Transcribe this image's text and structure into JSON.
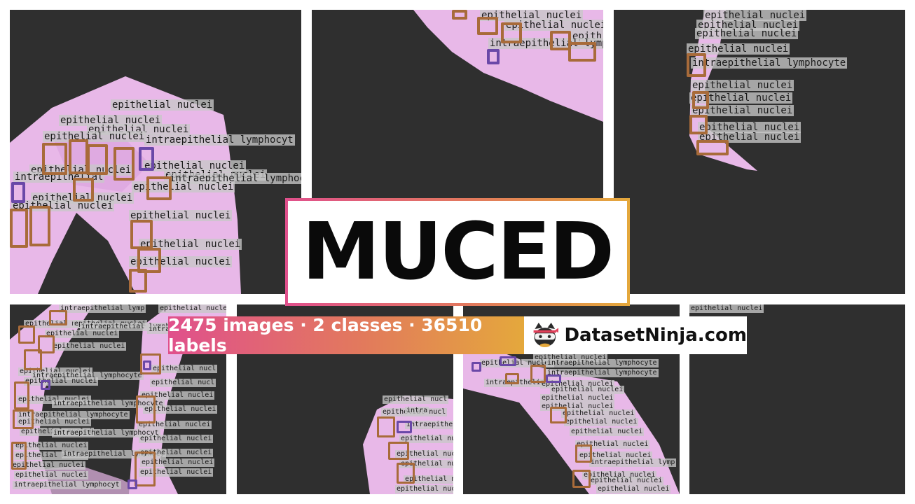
{
  "title": "MUCED",
  "stats": "2475 images · 2 classes · 36510 labels",
  "brand": "DatasetNinja.com",
  "brand_icon": "ninja-cat-icon",
  "colors": {
    "gradient_start": "#e0508c",
    "gradient_end": "#e4a83c",
    "tile_background": "#2f2f2f",
    "tissue": "#e8b8e8",
    "epithelial_box": "#a86b3a",
    "lymphocyte_box": "#6a48a8"
  },
  "classes": {
    "epithelial": "epithelial nuclei",
    "lymphocyte": "intraepithelial lymphocyte",
    "lymphocyte_cut_1": "intraepithelial lymphocyt",
    "lymphocyte_cut_2": "intraepithelial lymphocy",
    "lymphocyte_cut_3": "intraepithelial lymp",
    "lymphocyte_cut_4": "intraepithelial",
    "lymphocyte_cut_5": "intra",
    "lymphocyte_cut_6": "intr",
    "epithelial_cut_1": "epithelial nucl",
    "epithelial_cut_2": "epithelial nuc",
    "epithelial_cut_3": "epithelial n",
    "epithelial_cut_4": "epithelial",
    "epithelial_cut_5": "epith",
    "epithelial_cut_6": "epi"
  }
}
